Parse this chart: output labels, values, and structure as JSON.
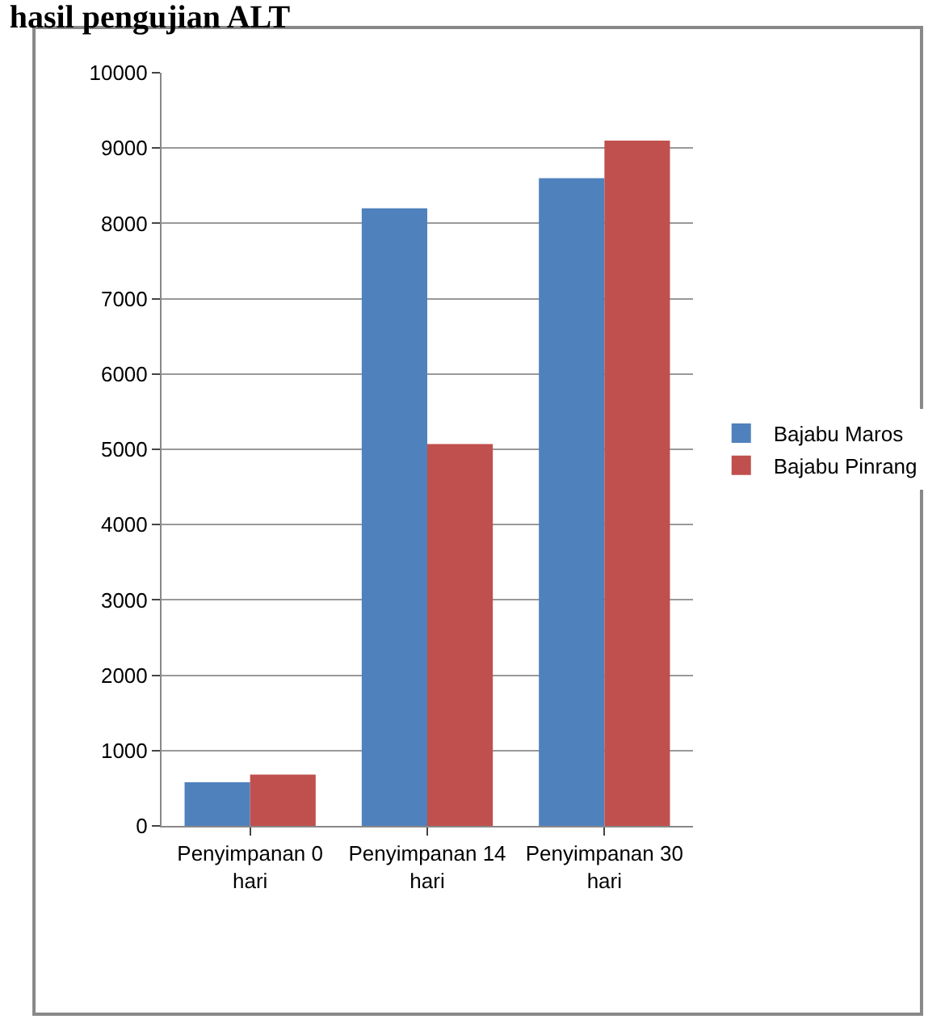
{
  "chart_data": {
    "type": "bar",
    "title": "hasil pengujian ALT",
    "categories": [
      "Penyimpanan 0 hari",
      "Penyimpanan 14 hari",
      "Penyimpanan 30 hari"
    ],
    "series": [
      {
        "name": "Bajabu Maros",
        "color": "#4f81bd",
        "values": [
          580,
          8200,
          8600
        ]
      },
      {
        "name": "Bajabu Pinrang",
        "color": "#c0504d",
        "values": [
          680,
          5070,
          9100
        ]
      }
    ],
    "ylim": [
      0,
      10000
    ],
    "yticks": [
      0,
      1000,
      2000,
      3000,
      4000,
      5000,
      6000,
      7000,
      8000,
      9000,
      10000
    ],
    "grid": "y",
    "legend": "right"
  }
}
